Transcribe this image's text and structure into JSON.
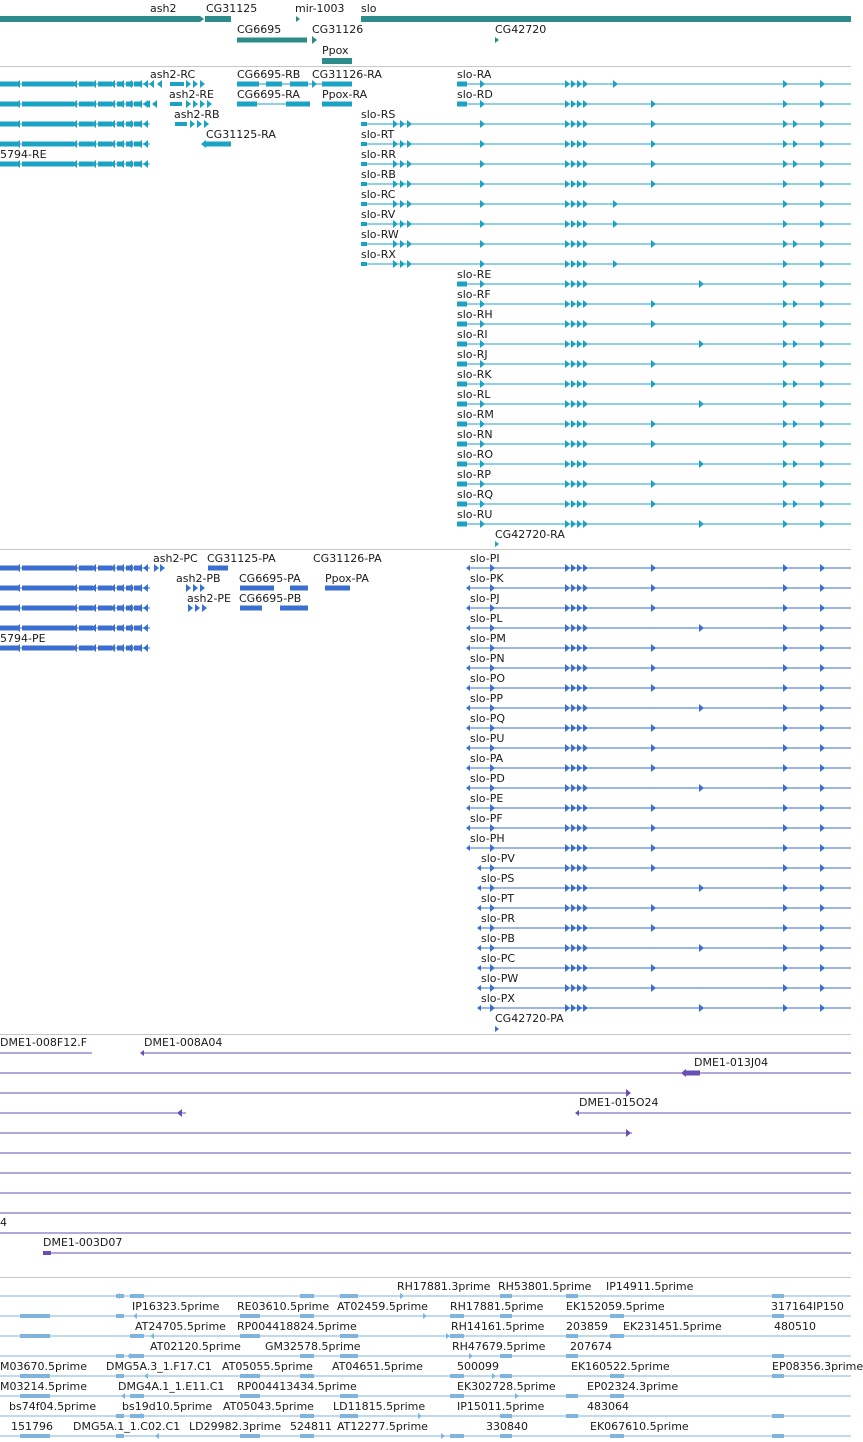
{
  "colors": {
    "gene": "#2e8b8b",
    "mrna": "#1ba3c6",
    "protein": "#3a6fcf",
    "clone": "#6a4fb3",
    "est": "#7fb5dd"
  },
  "gene_labels": [
    "ash2",
    "CG31125",
    "mir-1003",
    "slo",
    "CG6695",
    "CG31126",
    "CG42720",
    "Ppox"
  ],
  "mrna_labels": [
    "ash2-RC",
    "CG6695-RB",
    "CG31126-RA",
    "slo-RA",
    "ash2-RE",
    "CG6695-RA",
    "Ppox-RA",
    "slo-RD",
    "ash2-RB",
    "slo-RS",
    "CG31125-RA",
    "slo-RT",
    "5794-RE",
    "slo-RR",
    "slo-RB",
    "slo-RC",
    "slo-RV",
    "slo-RW",
    "slo-RX",
    "slo-RE",
    "slo-RF",
    "slo-RH",
    "slo-RI",
    "slo-RJ",
    "slo-RK",
    "slo-RL",
    "slo-RM",
    "slo-RN",
    "slo-RO",
    "slo-RP",
    "slo-RQ",
    "slo-RU",
    "CG42720-RA"
  ],
  "protein_labels": [
    "ash2-PC",
    "CG31125-PA",
    "CG31126-PA",
    "slo-PI",
    "ash2-PB",
    "CG6695-PA",
    "Ppox-PA",
    "slo-PK",
    "ash2-PE",
    "CG6695-PB",
    "slo-PJ",
    "5794-PE",
    "slo-PL",
    "slo-PM",
    "slo-PN",
    "slo-PO",
    "slo-PP",
    "slo-PQ",
    "slo-PU",
    "slo-PA",
    "slo-PD",
    "slo-PE",
    "slo-PF",
    "slo-PH",
    "slo-PV",
    "slo-PS",
    "slo-PT",
    "slo-PR",
    "slo-PB",
    "slo-PC",
    "slo-PW",
    "slo-PX",
    "CG42720-PA"
  ],
  "clone_labels": [
    "DME1-008F12.F",
    "DME1-008A04",
    "DME1-013J04",
    "DME1-015O24",
    "4",
    "DME1-003D07"
  ],
  "est_labels": [
    "RH17881.3prime",
    "RH53801.5prime",
    "IP14911.5prime",
    "IP16323.5prime",
    "RE03610.5prime",
    "AT02459.5prime",
    "RH17881.5prime",
    "EK152059.5prime",
    "317164IP150",
    "AT24705.5prime",
    "RP004418824.5prime",
    "RH14161.5prime",
    "203859",
    "EK231451.5prime",
    "480510",
    "AT02120.5prime",
    "GM32578.5prime",
    "RH47679.5prime",
    "207674",
    "M03670.5prime",
    "DMG5A.3_1.F17.C1",
    "AT05055.5prime",
    "AT04651.5prime",
    "500099",
    "EK160522.5prime",
    "EP08356.3prime",
    "M03214.5prime",
    "DMG4A.1_1.E11.C1",
    "RP004413434.5prime",
    "EK302728.5prime",
    "EP02324.3prime",
    "bs74f04.5prime",
    "bs19d10.5prime",
    "AT05043.5prime",
    "LD11815.5prime",
    "IP15011.5prime",
    "483064",
    "151796",
    "DMG5A.1_1.C02.C1",
    "LD29982.3prime",
    "524811",
    "AT12277.5prime",
    "330840",
    "EK067610.5prime"
  ]
}
